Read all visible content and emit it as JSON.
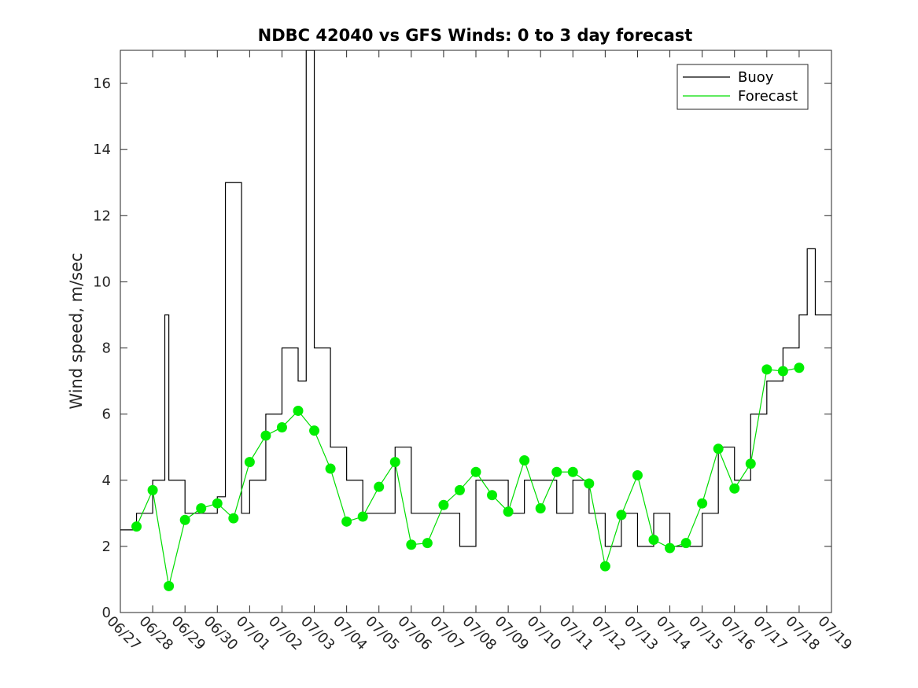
{
  "chart_data": {
    "type": "line",
    "title": "NDBC 42040 vs GFS Winds: 0 to 3 day forecast",
    "ylabel": "Wind speed, m/sec",
    "xlabel": "",
    "ylim": [
      0,
      17
    ],
    "yticks": [
      0,
      2,
      4,
      6,
      8,
      10,
      12,
      14,
      16
    ],
    "xticks": [
      "06/27",
      "06/28",
      "06/29",
      "06/30",
      "07/01",
      "07/02",
      "07/03",
      "07/04",
      "07/05",
      "07/06",
      "07/07",
      "07/08",
      "07/09",
      "07/10",
      "07/11",
      "07/12",
      "07/13",
      "07/14",
      "07/15",
      "07/16",
      "07/17",
      "07/18",
      "07/19"
    ],
    "legend": {
      "position": "top-right",
      "entries": [
        "Buoy",
        "Forecast"
      ]
    },
    "colors": {
      "buoy": "#000000",
      "forecast": "#00dd00",
      "marker": "#00ee00",
      "axis": "#262626"
    },
    "forecast_markers": {
      "name": "Forecast",
      "x": [
        "06/27 12:00",
        "06/28 00:00",
        "06/28 12:00",
        "06/29 00:00",
        "06/29 12:00",
        "06/30 00:00",
        "06/30 12:00",
        "07/01 00:00",
        "07/01 12:00",
        "07/02 00:00",
        "07/02 12:00",
        "07/03 00:00",
        "07/03 12:00",
        "07/04 00:00",
        "07/04 12:00",
        "07/05 00:00",
        "07/05 12:00",
        "07/06 00:00",
        "07/06 12:00",
        "07/07 00:00",
        "07/07 12:00",
        "07/08 00:00",
        "07/08 12:00",
        "07/09 00:00",
        "07/09 12:00",
        "07/10 00:00",
        "07/10 12:00",
        "07/11 00:00",
        "07/11 12:00",
        "07/12 00:00",
        "07/12 12:00",
        "07/13 00:00",
        "07/13 12:00",
        "07/14 00:00",
        "07/14 12:00",
        "07/15 00:00",
        "07/15 12:00",
        "07/16 00:00",
        "07/16 12:00",
        "07/17 00:00",
        "07/17 12:00",
        "07/18 00:00"
      ],
      "y": [
        2.6,
        3.7,
        0.8,
        2.8,
        3.15,
        3.3,
        2.85,
        4.55,
        5.35,
        5.6,
        6.1,
        5.5,
        4.35,
        2.75,
        2.9,
        3.8,
        4.55,
        2.05,
        2.1,
        3.25,
        3.7,
        4.25,
        3.55,
        3.05,
        4.6,
        3.15,
        4.25,
        4.25,
        3.9,
        1.4,
        2.95,
        4.15,
        2.2,
        1.95,
        2.1,
        3.3,
        4.95,
        3.75,
        4.5,
        7.35,
        7.3,
        7.4
      ]
    },
    "buoy": {
      "name": "Buoy",
      "x": [
        "06/27 00:00",
        "06/27 12:00",
        "06/28 00:00",
        "06/28 09:00",
        "06/28 12:00",
        "06/29 00:00",
        "06/29 12:00",
        "06/30 00:00",
        "06/30 06:00",
        "06/30 18:00",
        "07/01 00:00",
        "07/01 12:00",
        "07/02 00:00",
        "07/02 12:00",
        "07/02 18:00",
        "07/03 00:00",
        "07/03 12:00",
        "07/04 00:00",
        "07/04 12:00",
        "07/05 00:00",
        "07/05 12:00",
        "07/06 00:00",
        "07/06 12:00",
        "07/07 00:00",
        "07/07 12:00",
        "07/08 00:00",
        "07/08 12:00",
        "07/09 00:00",
        "07/09 12:00",
        "07/10 00:00",
        "07/10 12:00",
        "07/11 00:00",
        "07/11 12:00",
        "07/12 00:00",
        "07/12 12:00",
        "07/13 00:00",
        "07/13 12:00",
        "07/14 00:00",
        "07/14 12:00",
        "07/15 00:00",
        "07/15 12:00",
        "07/16 00:00",
        "07/16 12:00",
        "07/17 00:00",
        "07/17 12:00",
        "07/18 00:00",
        "07/18 06:00",
        "07/18 12:00"
      ],
      "y": [
        2.5,
        3,
        4,
        9,
        4,
        3,
        3,
        3.5,
        13,
        3,
        4,
        6,
        8,
        7,
        17,
        8,
        5,
        4,
        3,
        3,
        5,
        3,
        3,
        3,
        2,
        4,
        4,
        3,
        4,
        4,
        3,
        4,
        3,
        2,
        3,
        2,
        3,
        2,
        2,
        3,
        5,
        4,
        6,
        7,
        8,
        9,
        11,
        9
      ]
    }
  }
}
